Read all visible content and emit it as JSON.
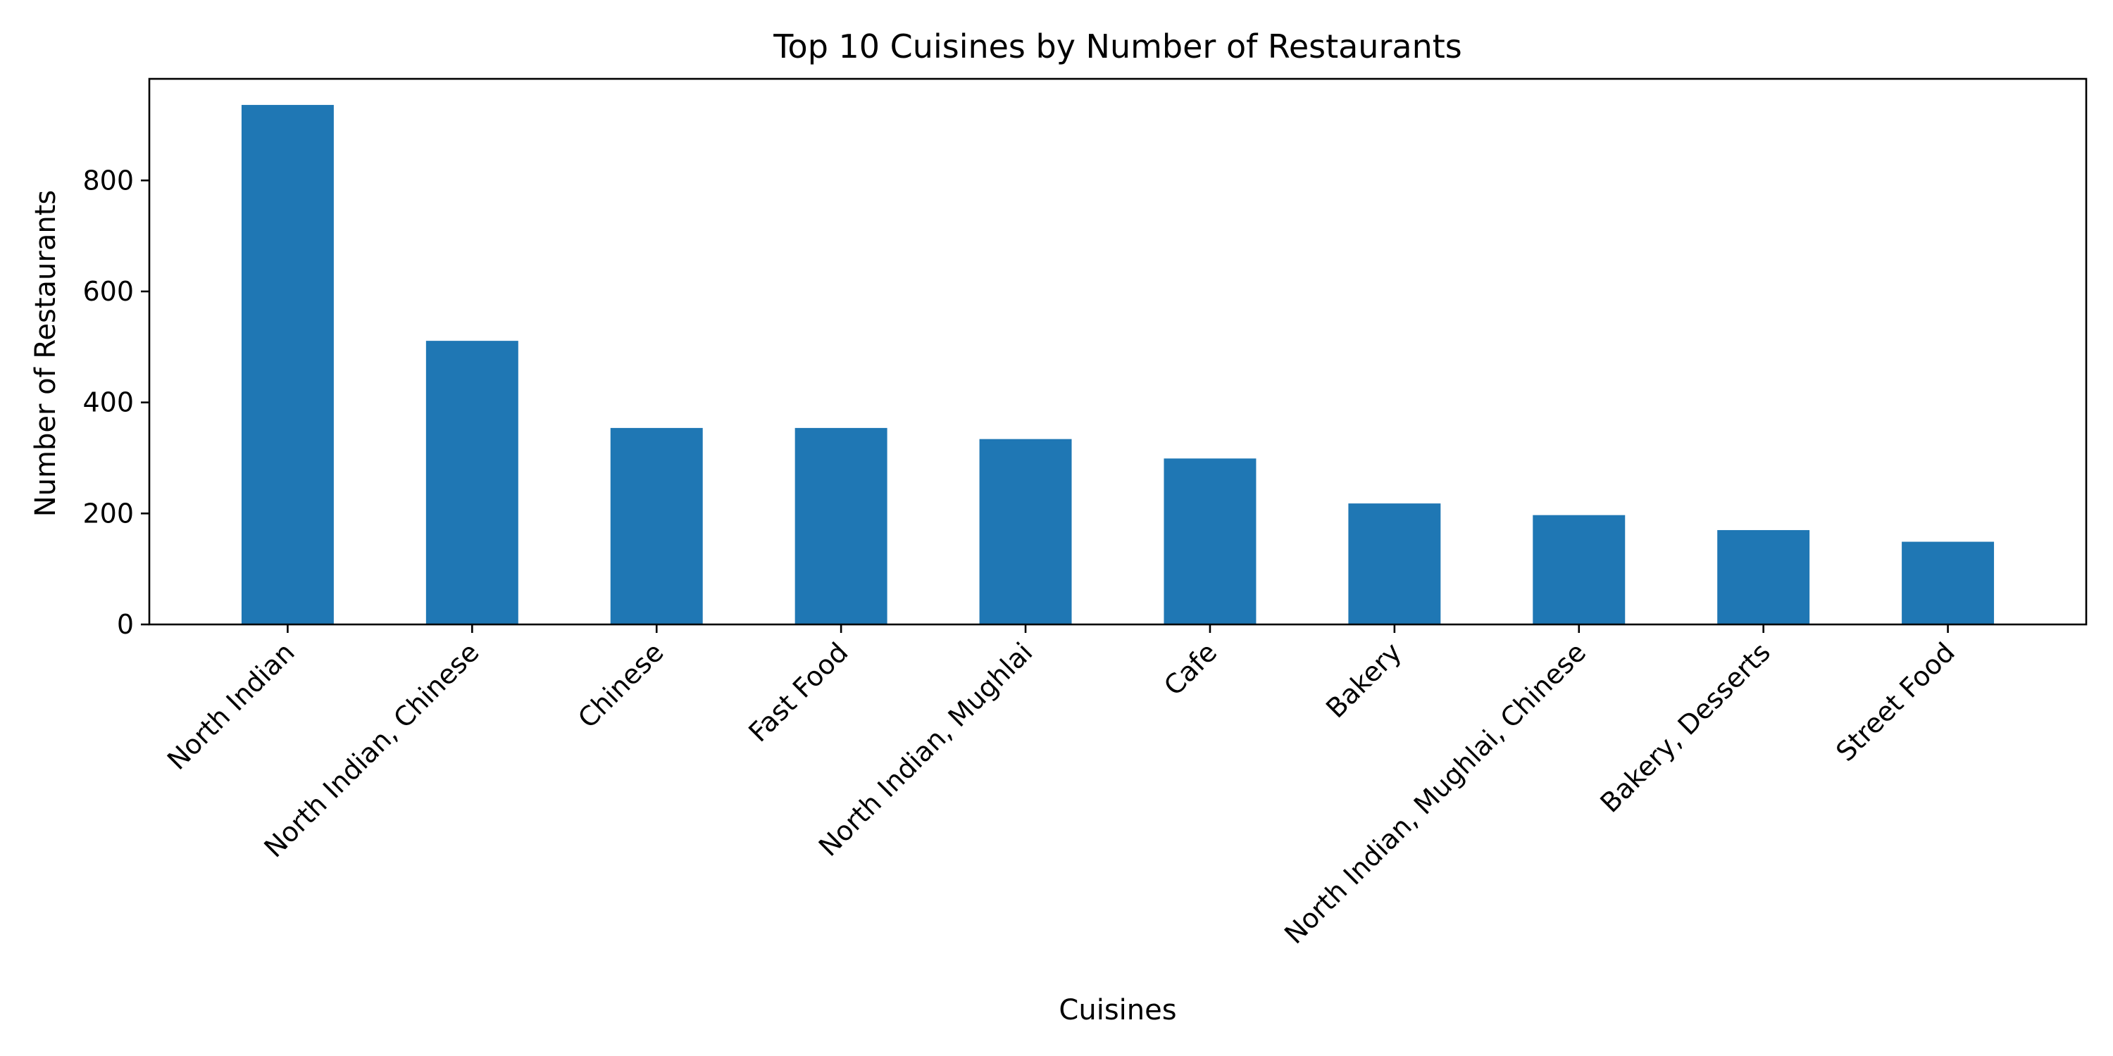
{
  "chart_data": {
    "type": "bar",
    "title": "Top 10 Cuisines by Number of Restaurants",
    "xlabel": "Cuisines",
    "ylabel": "Number of Restaurants",
    "categories": [
      "North Indian",
      "North Indian, Chinese",
      "Chinese",
      "Fast Food",
      "North Indian, Mughlai",
      "Cafe",
      "Bakery",
      "North Indian, Mughlai, Chinese",
      "Bakery, Desserts",
      "Street Food"
    ],
    "values": [
      936,
      511,
      354,
      354,
      334,
      299,
      218,
      197,
      170,
      149
    ],
    "yticks": [
      0,
      200,
      400,
      600,
      800
    ],
    "ylim": [
      0,
      983
    ],
    "grid": false,
    "colors": {
      "bar": "#1f77b4"
    }
  }
}
